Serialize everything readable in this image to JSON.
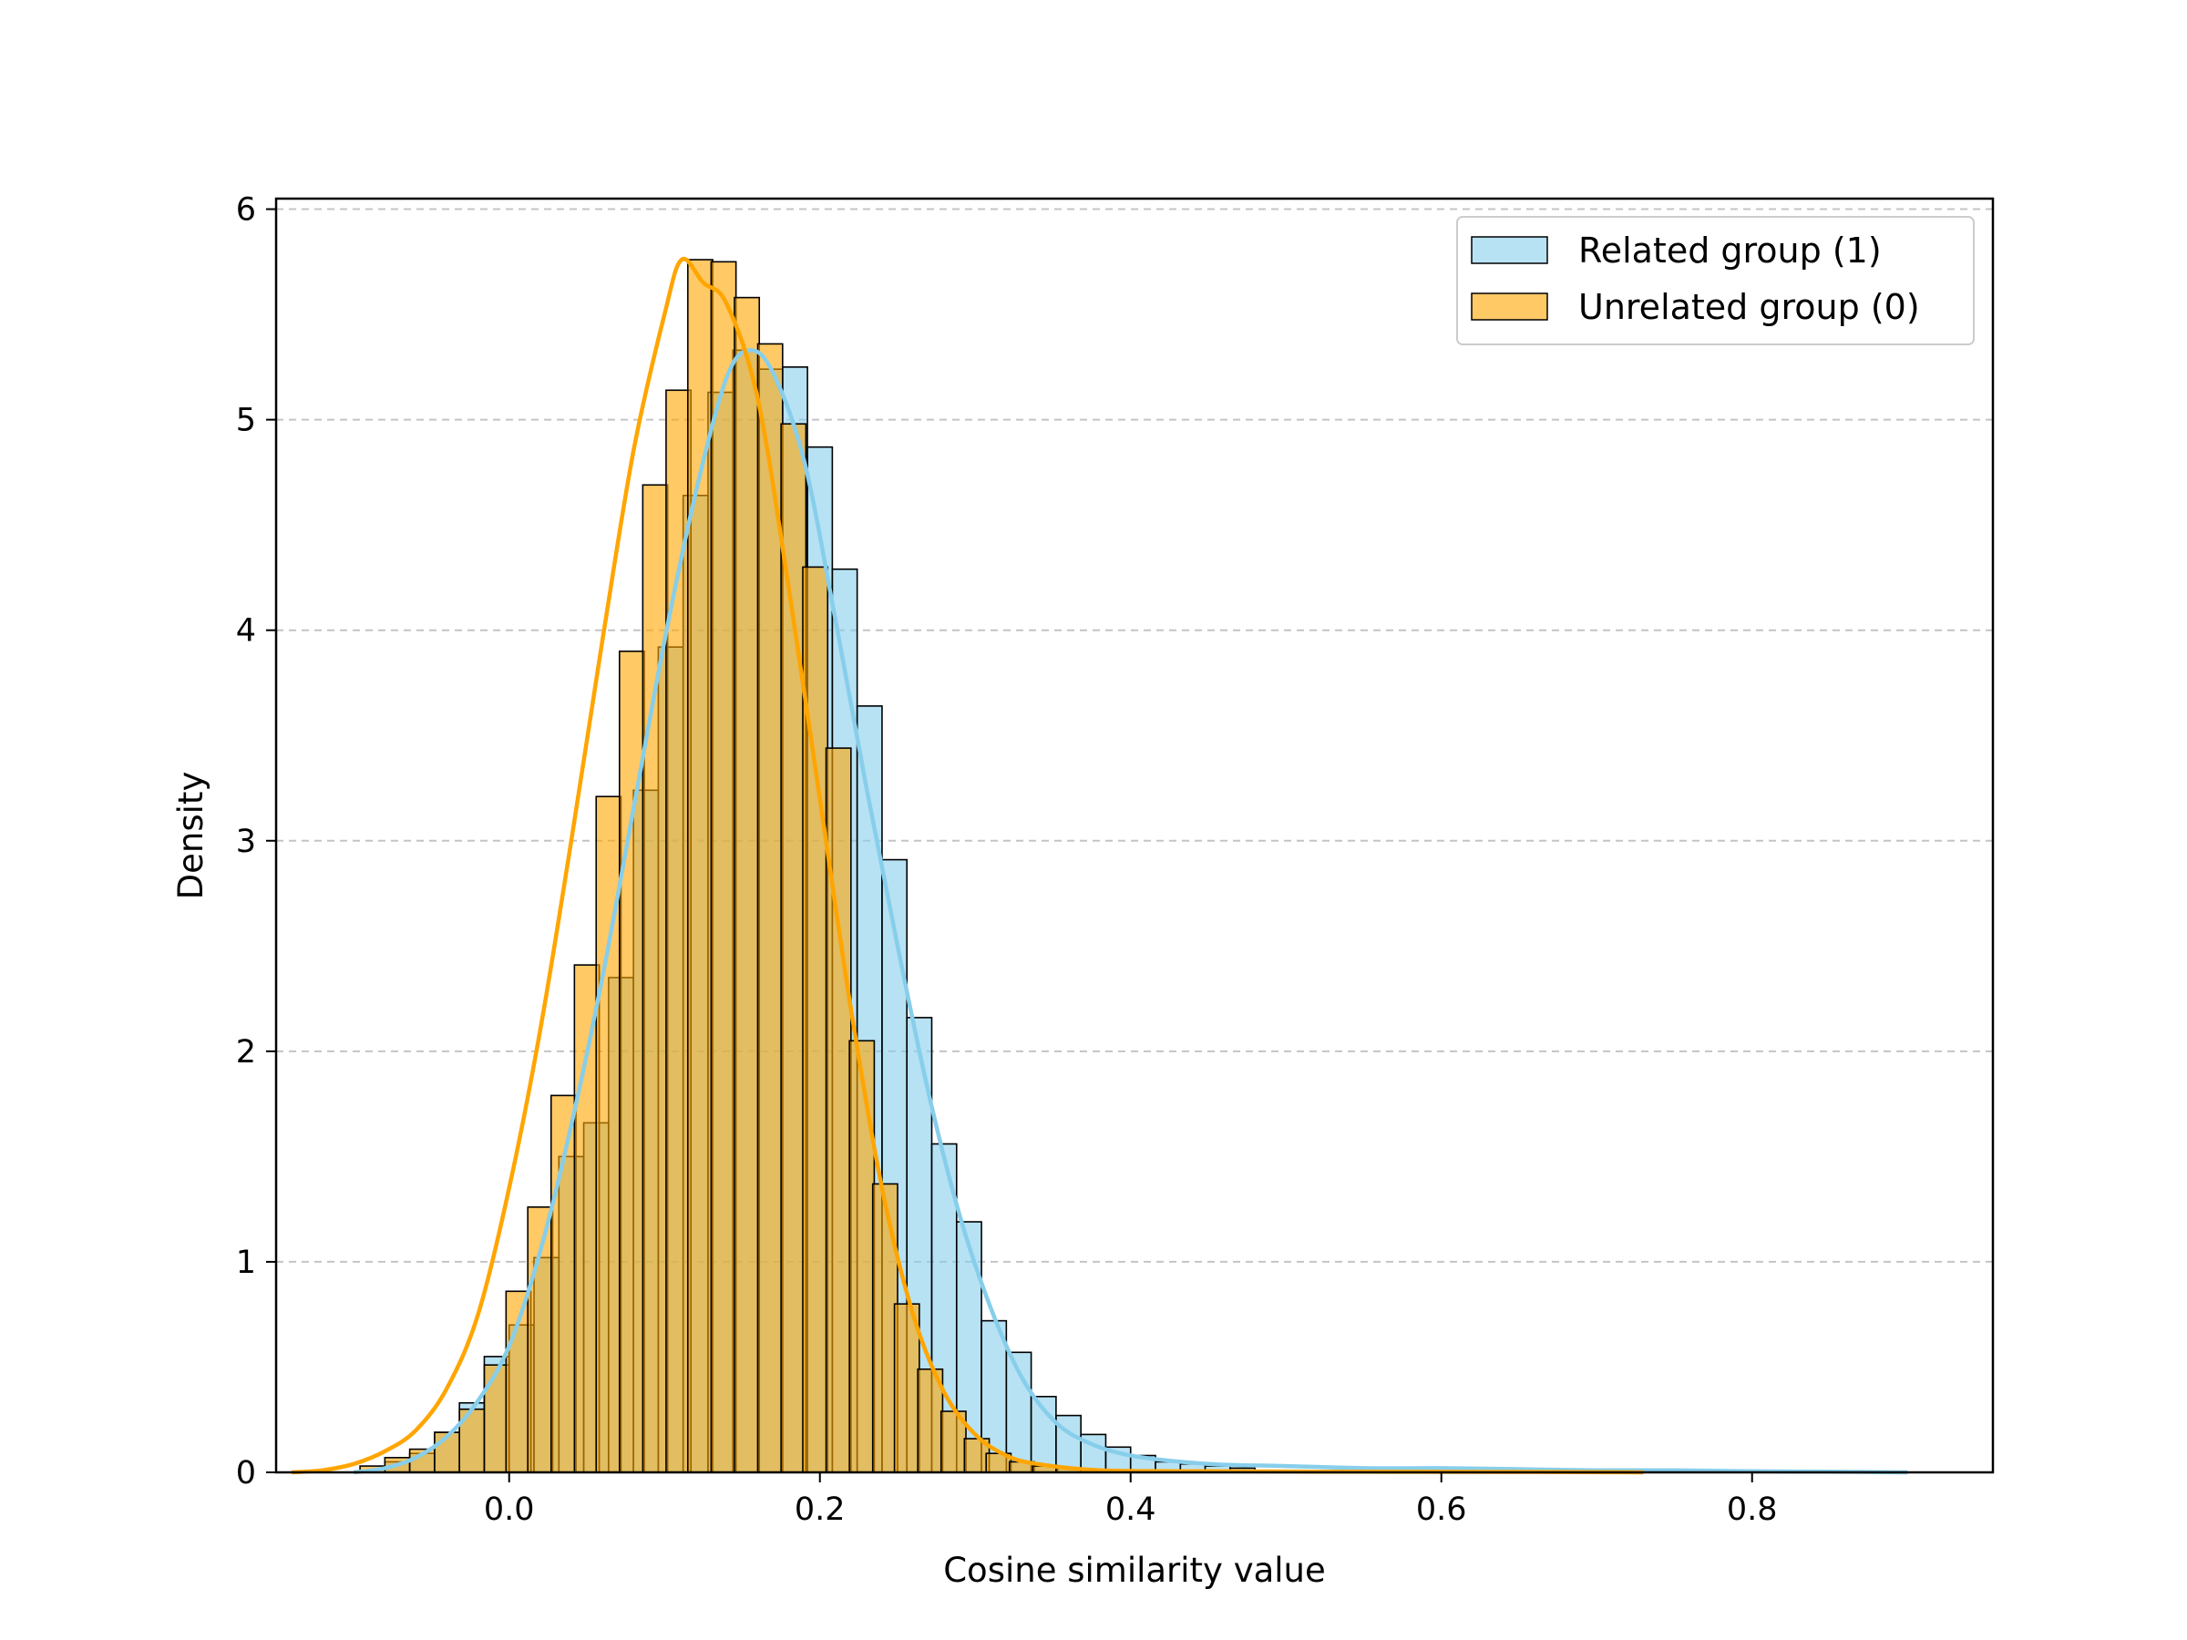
{
  "chart_data": {
    "type": "histogram",
    "xlabel": "Cosine similarity value",
    "ylabel": "Density",
    "xlim": [
      -0.15,
      0.955
    ],
    "ylim": [
      0,
      6.05
    ],
    "xticks": [
      "0.0",
      "0.2",
      "0.4",
      "0.6",
      "0.8"
    ],
    "xtick_values": [
      0.0,
      0.2,
      0.4,
      0.6,
      0.8
    ],
    "yticks": [
      "0",
      "1",
      "2",
      "3",
      "4",
      "5",
      "6"
    ],
    "ytick_values": [
      0,
      1,
      2,
      3,
      4,
      5,
      6
    ],
    "grid": "y-dashed",
    "legend_position": "top-right",
    "bin_width": 0.016,
    "series": [
      {
        "name": "Related group (1)",
        "kind": "histogram+kde",
        "color": "#87CEEB",
        "bins": [
          [
            -0.08,
            0.05
          ],
          [
            -0.064,
            0.09
          ],
          [
            -0.048,
            0.19
          ],
          [
            -0.032,
            0.33
          ],
          [
            -0.016,
            0.55
          ],
          [
            0.0,
            0.7
          ],
          [
            0.016,
            1.02
          ],
          [
            0.032,
            1.5
          ],
          [
            0.048,
            1.66
          ],
          [
            0.064,
            2.35
          ],
          [
            0.08,
            3.24
          ],
          [
            0.096,
            3.92
          ],
          [
            0.112,
            4.64
          ],
          [
            0.128,
            5.13
          ],
          [
            0.144,
            5.33
          ],
          [
            0.16,
            5.24
          ],
          [
            0.176,
            5.25
          ],
          [
            0.192,
            4.87
          ],
          [
            0.208,
            4.29
          ],
          [
            0.224,
            3.64
          ],
          [
            0.24,
            2.91
          ],
          [
            0.256,
            2.16
          ],
          [
            0.272,
            1.56
          ],
          [
            0.288,
            1.19
          ],
          [
            0.304,
            0.72
          ],
          [
            0.32,
            0.57
          ],
          [
            0.336,
            0.36
          ],
          [
            0.352,
            0.27
          ],
          [
            0.368,
            0.18
          ],
          [
            0.384,
            0.12
          ],
          [
            0.4,
            0.08
          ],
          [
            0.416,
            0.05
          ],
          [
            0.432,
            0.04
          ],
          [
            0.448,
            0.03
          ],
          [
            0.464,
            0.02
          ]
        ],
        "kde": [
          [
            -0.1,
            0.0
          ],
          [
            -0.08,
            0.02
          ],
          [
            -0.06,
            0.07
          ],
          [
            -0.04,
            0.17
          ],
          [
            -0.02,
            0.34
          ],
          [
            0.0,
            0.6
          ],
          [
            0.02,
            1.05
          ],
          [
            0.04,
            1.65
          ],
          [
            0.06,
            2.35
          ],
          [
            0.08,
            3.15
          ],
          [
            0.1,
            3.95
          ],
          [
            0.12,
            4.65
          ],
          [
            0.14,
            5.2
          ],
          [
            0.155,
            5.33
          ],
          [
            0.17,
            5.22
          ],
          [
            0.19,
            4.8
          ],
          [
            0.21,
            4.05
          ],
          [
            0.23,
            3.25
          ],
          [
            0.25,
            2.5
          ],
          [
            0.27,
            1.8
          ],
          [
            0.29,
            1.22
          ],
          [
            0.31,
            0.78
          ],
          [
            0.33,
            0.45
          ],
          [
            0.35,
            0.25
          ],
          [
            0.37,
            0.15
          ],
          [
            0.4,
            0.08
          ],
          [
            0.45,
            0.04
          ],
          [
            0.5,
            0.03
          ],
          [
            0.55,
            0.02
          ],
          [
            0.6,
            0.02
          ],
          [
            0.65,
            0.015
          ],
          [
            0.7,
            0.01
          ],
          [
            0.75,
            0.01
          ],
          [
            0.8,
            0.005
          ],
          [
            0.85,
            0.003
          ],
          [
            0.9,
            0.0
          ]
        ]
      },
      {
        "name": "Unrelated group (0)",
        "kind": "histogram+kde",
        "color": "#FFA500",
        "bins": [
          [
            -0.096,
            0.03
          ],
          [
            -0.08,
            0.07
          ],
          [
            -0.064,
            0.11
          ],
          [
            -0.048,
            0.19
          ],
          [
            -0.032,
            0.3
          ],
          [
            -0.016,
            0.51
          ],
          [
            -0.002,
            0.86
          ],
          [
            0.012,
            1.26
          ],
          [
            0.027,
            1.79
          ],
          [
            0.042,
            2.41
          ],
          [
            0.056,
            3.21
          ],
          [
            0.071,
            3.9
          ],
          [
            0.086,
            4.69
          ],
          [
            0.101,
            5.14
          ],
          [
            0.115,
            5.76
          ],
          [
            0.13,
            5.75
          ],
          [
            0.145,
            5.58
          ],
          [
            0.16,
            5.36
          ],
          [
            0.175,
            4.98
          ],
          [
            0.189,
            4.3
          ],
          [
            0.204,
            3.44
          ],
          [
            0.219,
            2.05
          ],
          [
            0.234,
            1.37
          ],
          [
            0.248,
            0.8
          ],
          [
            0.263,
            0.49
          ],
          [
            0.278,
            0.29
          ],
          [
            0.293,
            0.16
          ],
          [
            0.307,
            0.09
          ],
          [
            0.322,
            0.05
          ],
          [
            0.337,
            0.03
          ],
          [
            0.352,
            0.02
          ]
        ],
        "kde": [
          [
            -0.14,
            0.0
          ],
          [
            -0.12,
            0.01
          ],
          [
            -0.1,
            0.04
          ],
          [
            -0.08,
            0.1
          ],
          [
            -0.06,
            0.2
          ],
          [
            -0.04,
            0.4
          ],
          [
            -0.02,
            0.75
          ],
          [
            0.0,
            1.35
          ],
          [
            0.02,
            2.1
          ],
          [
            0.04,
            3.0
          ],
          [
            0.06,
            3.95
          ],
          [
            0.08,
            4.85
          ],
          [
            0.1,
            5.5
          ],
          [
            0.111,
            5.76
          ],
          [
            0.125,
            5.65
          ],
          [
            0.14,
            5.55
          ],
          [
            0.16,
            5.1
          ],
          [
            0.18,
            4.2
          ],
          [
            0.2,
            3.2
          ],
          [
            0.22,
            2.2
          ],
          [
            0.24,
            1.35
          ],
          [
            0.26,
            0.75
          ],
          [
            0.28,
            0.38
          ],
          [
            0.3,
            0.18
          ],
          [
            0.32,
            0.08
          ],
          [
            0.34,
            0.04
          ],
          [
            0.38,
            0.01
          ],
          [
            0.45,
            0.005
          ],
          [
            0.55,
            0.003
          ],
          [
            0.65,
            0.002
          ],
          [
            0.73,
            0.0
          ]
        ]
      }
    ]
  }
}
